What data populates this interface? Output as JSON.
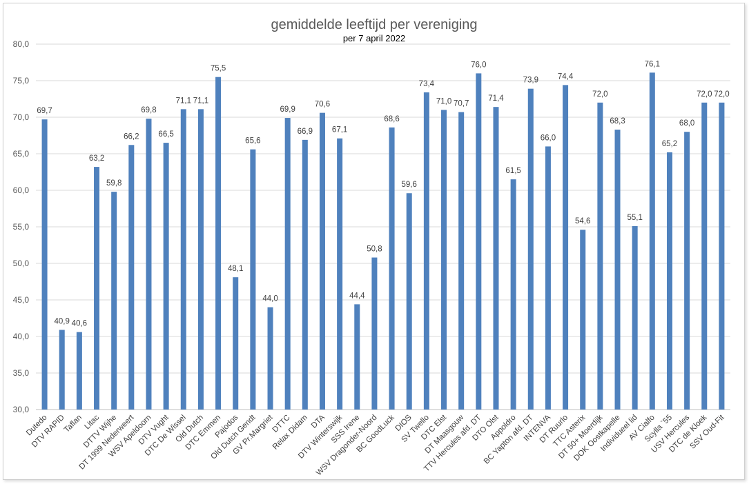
{
  "chart_data": {
    "type": "bar",
    "title": "gemiddelde leeftijd per vereniging",
    "subtitle": "per 7 april 2022",
    "xlabel": "",
    "ylabel": "",
    "ylim": [
      30,
      80
    ],
    "yticks": [
      "30,0",
      "35,0",
      "40,0",
      "45,0",
      "50,0",
      "55,0",
      "60,0",
      "65,0",
      "70,0",
      "75,0",
      "80,0"
    ],
    "grid": true,
    "legend": "none",
    "bar_color": "#4f81bd",
    "categories": [
      "Dutedo",
      "DTV RAPID",
      "Taflan",
      "Litac",
      "DTTV Wijhe",
      "DT 1999 Nederweert",
      "WSV Apeldoorn",
      "DTV Vught",
      "DTC De Wissel",
      "Old Dutch",
      "DTC Emmen",
      "Pajodos",
      "Old Dutch Gendt",
      "GV Pr.Margriet",
      "DTTC",
      "Relax Didam",
      "DTA",
      "DTV Winterswijk",
      "SSS Irene",
      "WSV Dragonder-Noord",
      "BC GoodLuck",
      "DIOS",
      "SV Twello",
      "DTC Elst",
      "DT Maasgouw",
      "TTV Hercules afd. DT",
      "DTO Olst",
      "Appoldro",
      "BC Yapton afd. DT",
      "INTENVA",
      "DT Ruurlo",
      "TTC Asterix",
      "DT 50+ Moerdijk",
      "DOK Oostkapelle",
      "Individueel lid",
      "AV Cialfo",
      "Scylla `55",
      "USV Hercules",
      "DTC de Kloek",
      "SSV Oud-Fit"
    ],
    "values": [
      69.7,
      40.9,
      40.6,
      63.2,
      59.8,
      66.2,
      69.8,
      66.5,
      71.1,
      71.1,
      75.5,
      48.1,
      65.6,
      44.0,
      69.9,
      66.9,
      70.6,
      67.1,
      44.4,
      50.8,
      68.6,
      59.6,
      73.4,
      71.0,
      70.7,
      76.0,
      71.4,
      61.5,
      73.9,
      66.0,
      74.4,
      54.6,
      72.0,
      68.3,
      55.1,
      76.1,
      65.2,
      68.0,
      72.0,
      72.0
    ],
    "data_labels": [
      "69,7",
      "40,9",
      "40,6",
      "63,2",
      "59,8",
      "66,2",
      "69,8",
      "66,5",
      "71,1",
      "71,1",
      "75,5",
      "48,1",
      "65,6",
      "44,0",
      "69,9",
      "66,9",
      "70,6",
      "67,1",
      "44,4",
      "50,8",
      "68,6",
      "59,6",
      "73,4",
      "71,0",
      "70,7",
      "76,0",
      "71,4",
      "61,5",
      "73,9",
      "66,0",
      "74,4",
      "54,6",
      "72,0",
      "68,3",
      "55,1",
      "76,1",
      "65,2",
      "68,0",
      "72,0",
      "72,0"
    ]
  }
}
